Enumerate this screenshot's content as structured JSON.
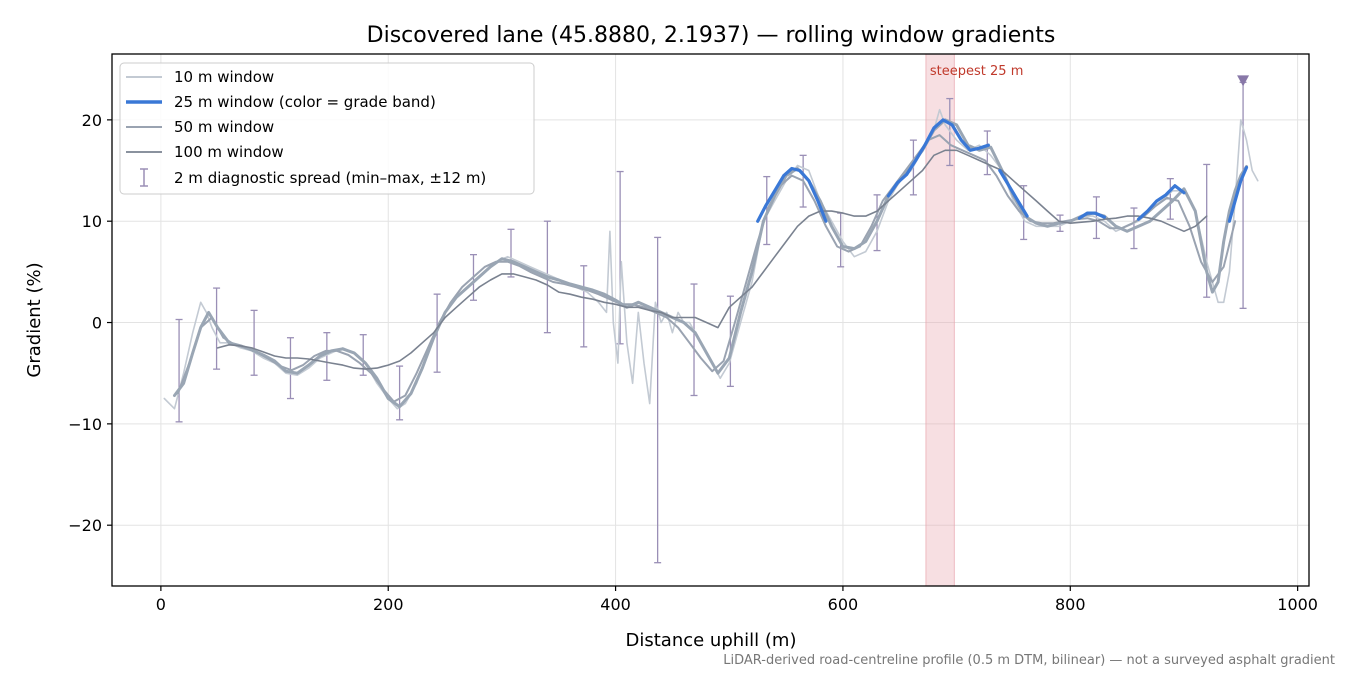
{
  "chart_data": {
    "type": "line",
    "title": "Discovered lane (45.8880, 2.1937) — rolling window gradients",
    "xlabel": "Distance uphill (m)",
    "ylabel": "Gradient (%)",
    "xlim": [
      -43,
      1010
    ],
    "ylim": [
      -26,
      26.5
    ],
    "xticks": [
      0,
      200,
      400,
      600,
      800,
      1000
    ],
    "yticks": [
      -20,
      -10,
      0,
      10,
      20
    ],
    "grid": true,
    "legend_position": "top-left",
    "colors": {
      "w10": "#c3cad3",
      "w25": "#9aa6b4",
      "w25_band": "#3a78d6",
      "w50": "#9aa3b1",
      "w100": "#7a8290",
      "errorbar": "#9a8fb6",
      "highlight": "#e8a4ac",
      "highlight_text": "#c0392b",
      "marker": "#8878a8"
    },
    "legend": [
      {
        "key": "w10",
        "label": "10 m window"
      },
      {
        "key": "w25",
        "label": "25 m window (color = grade band)"
      },
      {
        "key": "w50",
        "label": "50 m window"
      },
      {
        "key": "w100",
        "label": "100 m window"
      },
      {
        "key": "err",
        "label": "2 m diagnostic spread (min–max, ±12 m)"
      }
    ],
    "series": [
      {
        "name": "10 m window",
        "key": "w10",
        "x": [
          3,
          12,
          20,
          28,
          35,
          40,
          45,
          52,
          60,
          70,
          80,
          90,
          100,
          110,
          120,
          130,
          140,
          150,
          160,
          170,
          180,
          190,
          200,
          208,
          215,
          225,
          235,
          245,
          255,
          265,
          275,
          285,
          295,
          305,
          315,
          325,
          335,
          345,
          355,
          365,
          375,
          385,
          392,
          395,
          398,
          402,
          405,
          410,
          415,
          420,
          425,
          430,
          435,
          440,
          445,
          450,
          455,
          460,
          465,
          470,
          475,
          480,
          485,
          492,
          500,
          510,
          520,
          530,
          540,
          550,
          560,
          570,
          580,
          590,
          600,
          610,
          620,
          630,
          640,
          650,
          660,
          670,
          680,
          685,
          690,
          700,
          710,
          720,
          730,
          740,
          750,
          760,
          770,
          780,
          790,
          800,
          810,
          820,
          830,
          840,
          850,
          860,
          870,
          880,
          890,
          900,
          910,
          920,
          930,
          935,
          940,
          945,
          950,
          955,
          960,
          965
        ],
        "y": [
          -7.5,
          -8.5,
          -5,
          -1,
          2,
          1,
          -0.5,
          -2,
          -2,
          -2.5,
          -2.8,
          -3.5,
          -4,
          -5,
          -5.2,
          -4.5,
          -3.5,
          -3,
          -2.5,
          -3,
          -4,
          -6,
          -7.5,
          -8.5,
          -8,
          -6,
          -3,
          0,
          2,
          3.5,
          4.5,
          5.5,
          6,
          6.5,
          6,
          5.5,
          5,
          4.5,
          4,
          3.5,
          3,
          2,
          1,
          9,
          0,
          -4,
          6,
          -2,
          -6,
          1,
          -4,
          -8,
          2,
          0,
          1,
          -1,
          1,
          0,
          0,
          -1,
          -2,
          -3,
          -4,
          -5.5,
          -4,
          0,
          4,
          10,
          12,
          14,
          15.5,
          15,
          12,
          10,
          8,
          6.5,
          7,
          9,
          12,
          14,
          15,
          17,
          19,
          21,
          19.5,
          18,
          17,
          17.5,
          16.5,
          15,
          12,
          10,
          9.5,
          9.5,
          9.5,
          10,
          10.5,
          10.5,
          10,
          9,
          9.5,
          10,
          11,
          12,
          13,
          13,
          11,
          6,
          2,
          2,
          5,
          12,
          20,
          18,
          15,
          14
        ]
      },
      {
        "name": "25 m window",
        "key": "w25",
        "x": [
          12,
          20,
          28,
          35,
          42,
          50,
          60,
          70,
          80,
          90,
          100,
          110,
          120,
          130,
          140,
          150,
          160,
          170,
          180,
          190,
          200,
          210,
          220,
          230,
          240,
          250,
          260,
          270,
          280,
          290,
          300,
          310,
          320,
          330,
          340,
          350,
          360,
          370,
          380,
          390,
          400,
          410,
          420,
          430,
          440,
          450,
          460,
          470,
          480,
          490,
          500,
          510,
          520,
          530,
          540,
          550,
          560,
          570,
          580,
          590,
          600,
          610,
          620,
          630,
          640,
          650,
          660,
          670,
          680,
          690,
          700,
          710,
          720,
          730,
          740,
          750,
          760,
          770,
          780,
          790,
          800,
          810,
          820,
          830,
          840,
          850,
          860,
          870,
          880,
          890,
          900,
          910,
          920,
          925,
          930,
          935,
          940,
          945,
          950,
          955
        ],
        "y": [
          -7.2,
          -6,
          -3,
          -0.5,
          1,
          -0.5,
          -2,
          -2.3,
          -2.7,
          -3.2,
          -3.8,
          -4.8,
          -5,
          -4.2,
          -3.3,
          -2.8,
          -2.6,
          -3,
          -4,
          -5.5,
          -7.5,
          -8.3,
          -7,
          -4.5,
          -1.5,
          1,
          2.5,
          3.5,
          4.5,
          5.5,
          6.3,
          6,
          5.5,
          5,
          4.5,
          4.2,
          3.8,
          3.5,
          3.2,
          2.8,
          2.2,
          1.5,
          2,
          1.5,
          1,
          0.5,
          0,
          -1,
          -3,
          -5,
          -3.5,
          1,
          5,
          10,
          12.5,
          14.5,
          15.2,
          14,
          12,
          9.5,
          7.5,
          7.3,
          8,
          10,
          12.5,
          14,
          15.5,
          17,
          19,
          20,
          19.5,
          17.5,
          17,
          17.3,
          15,
          12.5,
          10.5,
          9.8,
          9.5,
          9.8,
          10,
          10.5,
          10.8,
          10.5,
          9.5,
          9,
          9.5,
          10,
          11,
          12,
          13.2,
          11,
          5,
          3,
          4,
          8,
          11,
          13,
          14.5,
          15.4
        ]
      },
      {
        "name": "50 m window",
        "key": "w50",
        "x": [
          15,
          25,
          35,
          45,
          55,
          65,
          75,
          85,
          95,
          105,
          115,
          125,
          135,
          145,
          155,
          165,
          175,
          185,
          195,
          205,
          215,
          225,
          235,
          245,
          255,
          265,
          275,
          285,
          295,
          305,
          315,
          325,
          335,
          345,
          355,
          365,
          375,
          385,
          395,
          405,
          415,
          425,
          435,
          445,
          455,
          465,
          475,
          485,
          495,
          505,
          515,
          525,
          535,
          545,
          555,
          565,
          575,
          585,
          595,
          605,
          615,
          625,
          635,
          645,
          655,
          665,
          675,
          685,
          695,
          705,
          715,
          725,
          735,
          745,
          755,
          765,
          775,
          785,
          795,
          805,
          815,
          825,
          835,
          845,
          855,
          865,
          875,
          885,
          895,
          905,
          915,
          925,
          935,
          945
        ],
        "y": [
          -7,
          -4,
          -0.5,
          0.5,
          -1.5,
          -2.2,
          -2.5,
          -3,
          -3.6,
          -4.3,
          -4.7,
          -4.2,
          -3.3,
          -2.8,
          -2.8,
          -3.2,
          -4,
          -5,
          -6.5,
          -7.8,
          -7.2,
          -5,
          -2.5,
          0,
          2,
          3.5,
          4.5,
          5.5,
          6,
          6,
          5.6,
          5,
          4.5,
          4,
          3.8,
          3.5,
          3.2,
          2.8,
          2.3,
          1.8,
          1.8,
          1.5,
          1,
          0.5,
          -0.5,
          -2,
          -3.5,
          -4.8,
          -3.8,
          0,
          4,
          8,
          11.5,
          13.5,
          14.5,
          14,
          12,
          9.5,
          7.5,
          7,
          7.5,
          9.5,
          12,
          13.5,
          15,
          16.5,
          18,
          18.5,
          17.5,
          17,
          16.5,
          16,
          14.5,
          12.5,
          11,
          10,
          9.8,
          9.8,
          10,
          10.2,
          10.3,
          10,
          9.3,
          9.3,
          9.8,
          10.5,
          11.5,
          12.3,
          12,
          9.5,
          6,
          4,
          5.5,
          10
        ]
      },
      {
        "name": "100 m window",
        "key": "w100",
        "x": [
          50,
          60,
          70,
          80,
          90,
          100,
          110,
          120,
          130,
          140,
          150,
          160,
          170,
          180,
          190,
          200,
          210,
          220,
          230,
          240,
          250,
          260,
          270,
          280,
          290,
          300,
          310,
          320,
          330,
          340,
          350,
          360,
          370,
          380,
          390,
          400,
          410,
          420,
          430,
          440,
          450,
          460,
          470,
          480,
          490,
          500,
          510,
          520,
          530,
          540,
          550,
          560,
          570,
          580,
          590,
          600,
          610,
          620,
          630,
          640,
          650,
          660,
          670,
          680,
          690,
          700,
          710,
          720,
          730,
          740,
          750,
          760,
          770,
          780,
          790,
          800,
          810,
          820,
          830,
          840,
          850,
          860,
          870,
          880,
          890,
          900,
          910,
          920
        ],
        "y": [
          -2.5,
          -2.2,
          -2.3,
          -2.5,
          -2.9,
          -3.3,
          -3.5,
          -3.5,
          -3.6,
          -3.8,
          -4,
          -4.2,
          -4.5,
          -4.6,
          -4.5,
          -4.2,
          -3.8,
          -3,
          -2,
          -1,
          0.5,
          1.5,
          2.5,
          3.5,
          4.2,
          4.8,
          4.8,
          4.5,
          4.2,
          3.7,
          3,
          2.8,
          2.5,
          2.3,
          2,
          1.8,
          1.5,
          1.5,
          1.2,
          1,
          0.5,
          0.5,
          0.5,
          0,
          -0.5,
          1.5,
          2.5,
          3.5,
          5,
          6.5,
          8,
          9.5,
          10.5,
          11,
          11,
          10.8,
          10.5,
          10.5,
          11,
          12,
          13,
          14,
          15,
          16.5,
          17,
          17,
          16.5,
          16,
          15.5,
          15,
          14,
          13,
          12,
          11,
          10,
          9.8,
          9.9,
          10,
          10.2,
          10.3,
          10.5,
          10.5,
          10.3,
          10,
          9.5,
          9,
          9.5,
          10.5
        ]
      }
    ],
    "band_segments": [
      {
        "x": [
          525,
          532,
          540,
          548,
          555,
          562,
          570,
          578,
          585
        ],
        "y": [
          10,
          11.5,
          13,
          14.5,
          15.2,
          15,
          14,
          12,
          10
        ]
      },
      {
        "x": [
          640,
          648,
          656,
          664,
          672,
          680,
          688,
          696,
          704,
          712,
          720,
          728
        ],
        "y": [
          12.5,
          13.8,
          14.6,
          16,
          17.5,
          19.2,
          20,
          19.5,
          18,
          17,
          17.2,
          17.5
        ]
      },
      {
        "x": [
          738,
          746,
          754,
          762
        ],
        "y": [
          15,
          13.5,
          12,
          10.5
        ]
      },
      {
        "x": [
          808,
          815,
          822,
          830
        ],
        "y": [
          10.3,
          10.8,
          10.8,
          10.4
        ]
      },
      {
        "x": [
          860,
          868,
          876,
          884,
          892,
          900
        ],
        "y": [
          10.2,
          11,
          12,
          12.6,
          13.5,
          12.8
        ]
      },
      {
        "x": [
          940,
          945,
          950,
          955
        ],
        "y": [
          10,
          12,
          14,
          15.3
        ]
      }
    ],
    "error_bars": [
      {
        "x": 16,
        "min": -9.8,
        "max": 0.3
      },
      {
        "x": 49,
        "min": -4.6,
        "max": 3.4
      },
      {
        "x": 82,
        "min": -5.2,
        "max": 1.2
      },
      {
        "x": 114,
        "min": -7.5,
        "max": -1.5
      },
      {
        "x": 146,
        "min": -5.7,
        "max": -1
      },
      {
        "x": 178,
        "min": -5.2,
        "max": -1.2
      },
      {
        "x": 210,
        "min": -9.6,
        "max": -4.3
      },
      {
        "x": 243,
        "min": -4.9,
        "max": 2.8
      },
      {
        "x": 275,
        "min": 2.2,
        "max": 6.7
      },
      {
        "x": 308,
        "min": 4.5,
        "max": 9.2
      },
      {
        "x": 340,
        "min": -1,
        "max": 10
      },
      {
        "x": 372,
        "min": -2.4,
        "max": 5.6
      },
      {
        "x": 404,
        "min": -2.1,
        "max": 14.9
      },
      {
        "x": 437,
        "min": -23.7,
        "max": 8.4
      },
      {
        "x": 469,
        "min": -7.2,
        "max": 3.8
      },
      {
        "x": 501,
        "min": -6.3,
        "max": 2.6
      },
      {
        "x": 533,
        "min": 7.7,
        "max": 14.4
      },
      {
        "x": 565,
        "min": 11.4,
        "max": 16.5
      },
      {
        "x": 598,
        "min": 5.5,
        "max": 10.8
      },
      {
        "x": 630,
        "min": 7.1,
        "max": 12.6
      },
      {
        "x": 662,
        "min": 12.6,
        "max": 18
      },
      {
        "x": 694,
        "min": 15.5,
        "max": 22.1
      },
      {
        "x": 727,
        "min": 14.6,
        "max": 18.9
      },
      {
        "x": 759,
        "min": 8.2,
        "max": 13.5
      },
      {
        "x": 791,
        "min": 9,
        "max": 10.6
      },
      {
        "x": 823,
        "min": 8.3,
        "max": 12.4
      },
      {
        "x": 856,
        "min": 7.3,
        "max": 11.3
      },
      {
        "x": 888,
        "min": 10.2,
        "max": 14.2
      },
      {
        "x": 920,
        "min": 2.5,
        "max": 15.6
      },
      {
        "x": 952,
        "min": 1.4,
        "max": 23.7
      }
    ],
    "highlight": {
      "x_from": 673,
      "x_to": 698,
      "label": "steepest 25 m"
    },
    "peak_marker": {
      "x": 952,
      "y": 23.9
    }
  },
  "footnote": "LiDAR-derived road-centreline profile (0.5 m DTM, bilinear) — not a surveyed asphalt gradient"
}
